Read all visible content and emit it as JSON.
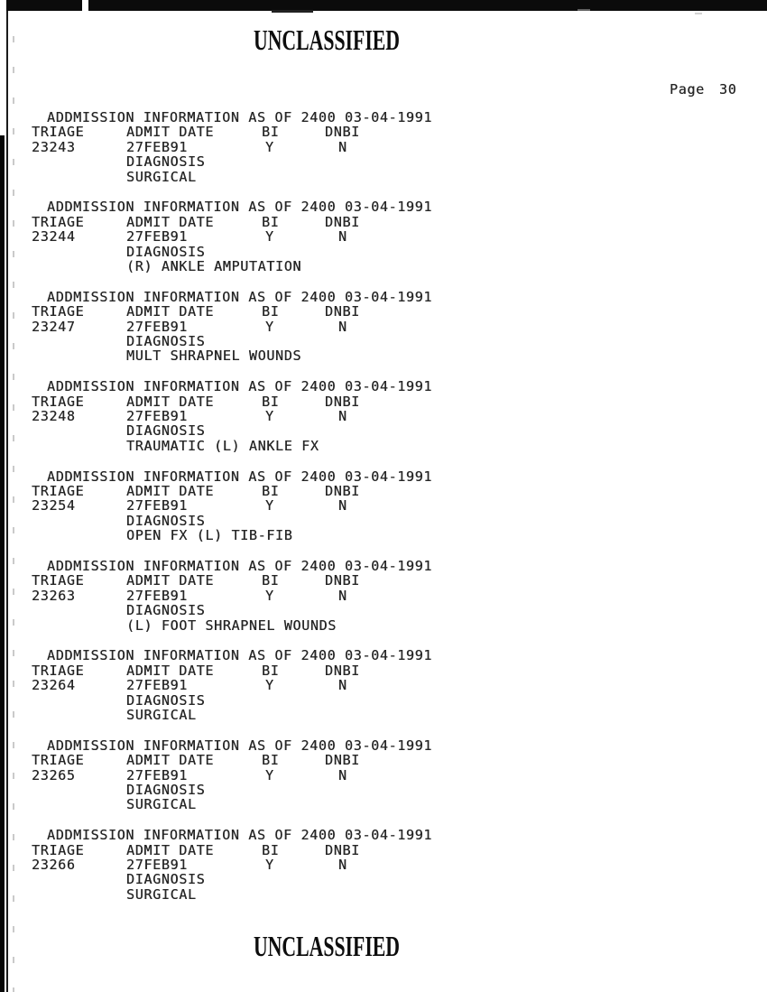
{
  "page": {
    "classification_header": "UNCLASSIFIED",
    "classification_footer": "UNCLASSIFIED",
    "page_label": "Page",
    "page_number": "30",
    "ink_color": "#262626",
    "paper_color": "#ffffff"
  },
  "report": {
    "record_header": "ADDMISSION INFORMATION AS OF 2400 03-04-1991",
    "column_labels": {
      "triage": "TRIAGE",
      "admit_date": "ADMIT DATE",
      "bi": "BI",
      "dnbi": "DNBI"
    },
    "diagnosis_label": "DIAGNOSIS",
    "records": [
      {
        "triage": "23243",
        "admit_date": "27FEB91",
        "bi": "Y",
        "dnbi": "N",
        "diagnosis": "SURGICAL"
      },
      {
        "triage": "23244",
        "admit_date": "27FEB91",
        "bi": "Y",
        "dnbi": "N",
        "diagnosis": "(R) ANKLE AMPUTATION"
      },
      {
        "triage": "23247",
        "admit_date": "27FEB91",
        "bi": "Y",
        "dnbi": "N",
        "diagnosis": "MULT SHRAPNEL WOUNDS"
      },
      {
        "triage": "23248",
        "admit_date": "27FEB91",
        "bi": "Y",
        "dnbi": "N",
        "diagnosis": "TRAUMATIC (L) ANKLE FX"
      },
      {
        "triage": "23254",
        "admit_date": "27FEB91",
        "bi": "Y",
        "dnbi": "N",
        "diagnosis": "OPEN FX (L) TIB-FIB"
      },
      {
        "triage": "23263",
        "admit_date": "27FEB91",
        "bi": "Y",
        "dnbi": "N",
        "diagnosis": "(L) FOOT SHRAPNEL WOUNDS"
      },
      {
        "triage": "23264",
        "admit_date": "27FEB91",
        "bi": "Y",
        "dnbi": "N",
        "diagnosis": "SURGICAL"
      },
      {
        "triage": "23265",
        "admit_date": "27FEB91",
        "bi": "Y",
        "dnbi": "N",
        "diagnosis": "SURGICAL"
      },
      {
        "triage": "23266",
        "admit_date": "27FEB91",
        "bi": "Y",
        "dnbi": "N",
        "diagnosis": "SURGICAL"
      }
    ]
  }
}
